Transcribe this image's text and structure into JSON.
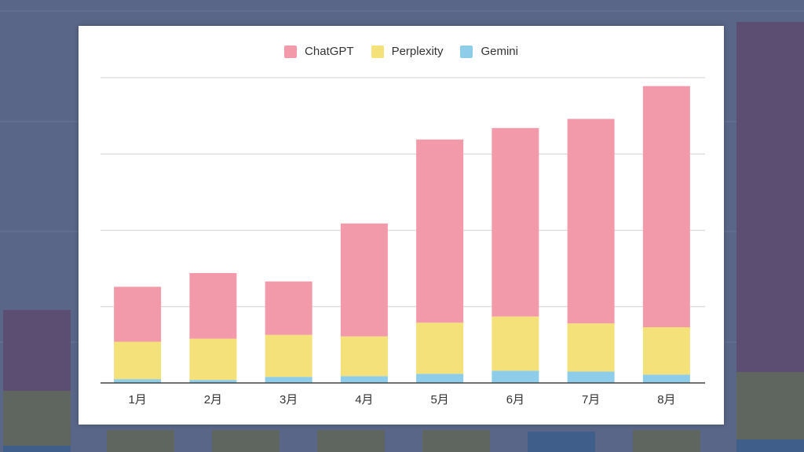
{
  "chart_data": {
    "type": "bar",
    "stacked": true,
    "categories": [
      "1月",
      "2月",
      "3月",
      "4月",
      "5月",
      "6月",
      "7月",
      "8月"
    ],
    "series": [
      {
        "name": "Gemini",
        "color": "#8ecdea",
        "values": [
          5,
          4,
          8,
          9,
          12,
          16,
          15,
          11
        ]
      },
      {
        "name": "ChatGPT",
        "color": "#f39aaa",
        "values": [
          72,
          86,
          70,
          148,
          240,
          247,
          268,
          316
        ],
        "stack_order": 3
      },
      {
        "name": "Perplexity",
        "color": "#f5e17a",
        "values": [
          49,
          54,
          55,
          52,
          67,
          71,
          63,
          62
        ]
      }
    ],
    "legend": [
      "ChatGPT",
      "Perplexity",
      "Gemini"
    ],
    "ylim": [
      0,
      400
    ],
    "y_gridlines": [
      100,
      200,
      300,
      400
    ],
    "grid": true,
    "legend_position": "top-center"
  }
}
